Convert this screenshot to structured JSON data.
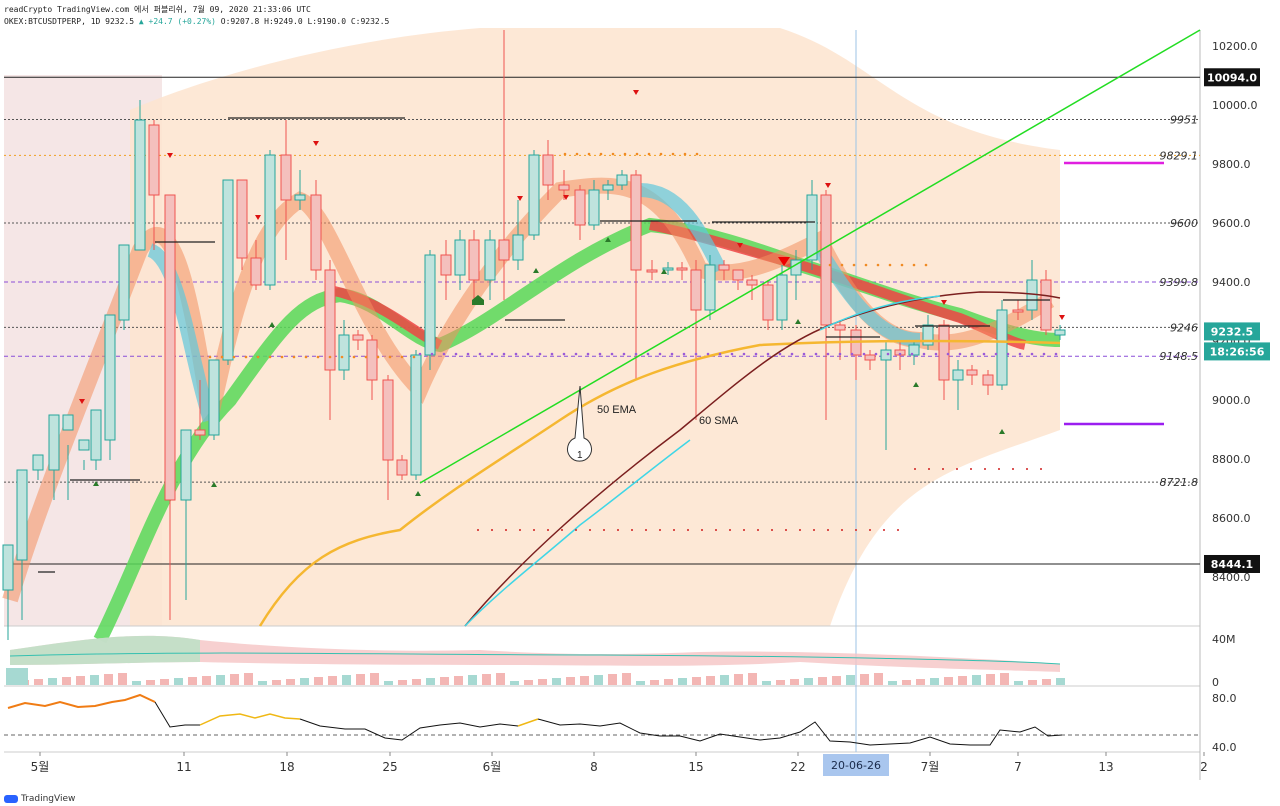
{
  "header": {
    "line1": "readCrypto TradingView.com 에서 퍼블리쉬, 7월 09, 2020 21:33:06 UTC",
    "symbol": "OKEX:BTCUSDTPERP, 1D",
    "last": "9232.5",
    "change": "▲ +24.7 (+0.27%)",
    "ohlc": "O:9207.8 H:9249.0 L:9190.0 C:9232.5"
  },
  "price_axis": {
    "ticks": [
      "10200.0",
      "10000.0",
      "9800.0",
      "9600.0",
      "9400.0",
      "9200.0",
      "9000.0",
      "8800.0",
      "8600.0",
      "8400.0"
    ],
    "tick_values": [
      10200,
      10000,
      9800,
      9600,
      9400,
      9200,
      9000,
      8800,
      8600,
      8400
    ],
    "range": [
      8200,
      10260
    ],
    "current_price_label": "9232.5",
    "countdown_label": "18:26:56",
    "current_price": 9232.5
  },
  "levels": [
    {
      "label": "10094.0",
      "value": 10094.0,
      "style": "solid-black-badge"
    },
    {
      "label": "9951",
      "value": 9951,
      "style": "dotted"
    },
    {
      "label": "9829.1",
      "value": 9829.1,
      "style": "dotted-orange"
    },
    {
      "label": "9600",
      "value": 9600,
      "style": "dotted"
    },
    {
      "label": "9399.8",
      "value": 9399.8,
      "style": "dashed-purple"
    },
    {
      "label": "9246",
      "value": 9246,
      "style": "dotted"
    },
    {
      "label": "9148.5",
      "value": 9148.5,
      "style": "dashed-purple"
    },
    {
      "label": "8721.8",
      "value": 8721.8,
      "style": "dotted"
    },
    {
      "label": "8444.1",
      "value": 8444.1,
      "style": "solid-black-badge"
    }
  ],
  "annotations": {
    "ema_label": "50 EMA",
    "sma_label": "60 SMA",
    "callout_label": "1"
  },
  "volume_axis": {
    "ticks": [
      "40M",
      "0"
    ]
  },
  "rsi_axis": {
    "ticks": [
      "80.0",
      "40.0"
    ]
  },
  "time_axis": {
    "labels": [
      "5월",
      "11",
      "18",
      "25",
      "6월",
      "8",
      "15",
      "22",
      "7월",
      "7",
      "13",
      "2"
    ],
    "crosshair_label": "20-06-26"
  },
  "colors": {
    "up": "#26a69a",
    "down": "#ef5350",
    "ema_line": "#f5b731",
    "sma_line": "#7b1f1f",
    "trendline": "#22dd22",
    "magenta_level": "#e020e0"
  },
  "footer": {
    "brand": "TradingView"
  }
}
